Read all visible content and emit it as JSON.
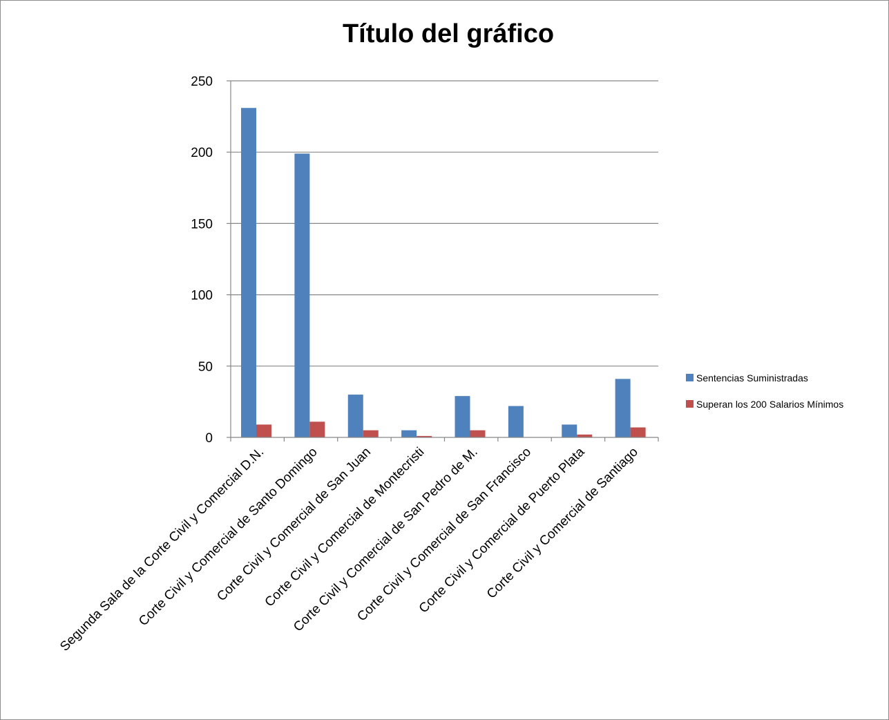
{
  "chart_data": {
    "type": "bar",
    "title": "Título del gráfico",
    "xlabel": "",
    "ylabel": "",
    "ylim": [
      0,
      250
    ],
    "yticks": [
      0,
      50,
      100,
      150,
      200,
      250
    ],
    "grid": true,
    "legend_position": "right",
    "categories": [
      "Segunda Sala de la Corte Civil y Comercial D.N.",
      "Corte Civil y Comercial de Santo Domingo",
      "Corte Civil y Comercial de San Juan",
      "Corte Civil y Comercial de Montecristi",
      "Corte Civil y Comercial de San Pedro de M.",
      "Corte Civil y Comercial de San Francisco",
      "Corte Civil y Comercial de Puerto Plata",
      "Corte Civil y Comercial de Santiago"
    ],
    "series": [
      {
        "name": "Sentencias Suministradas",
        "color": "#4f81bd",
        "values": [
          231,
          199,
          30,
          5,
          29,
          22,
          9,
          41
        ]
      },
      {
        "name": "Superan los 200 Salarios Mínimos",
        "color": "#c0504d",
        "values": [
          9,
          11,
          5,
          1,
          5,
          0,
          2,
          7
        ]
      }
    ]
  }
}
